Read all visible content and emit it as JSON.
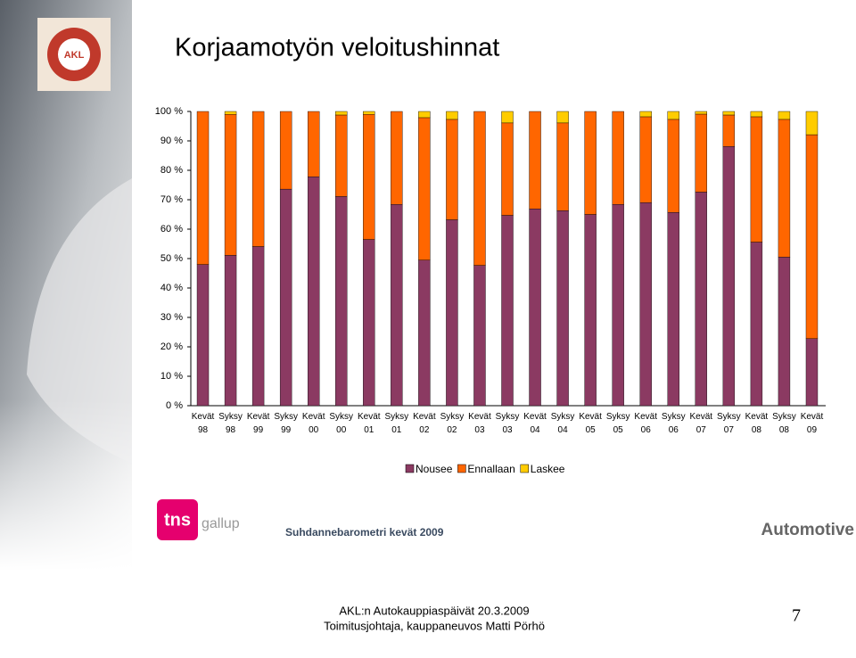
{
  "slide": {
    "logo": "AKL",
    "brand_left": "tns",
    "brand_right": "gallup",
    "survey": "Suhdannebarometri kevät 2009",
    "segment": "Automotive",
    "event": "AKL:n Autokauppiaspäivät 20.3.2009",
    "presenter": "Toimitusjohtaja, kauppaneuvos Matti Pörhö",
    "page": "7"
  },
  "chart_data": {
    "type": "stacked-bar",
    "title": "Korjaamotyön veloitushinnat",
    "categories": [
      "Kevät 98",
      "Syksy 98",
      "Kevät 99",
      "Syksy 99",
      "Kevät 00",
      "Syksy 00",
      "Kevät 01",
      "Syksy 01",
      "Kevät 02",
      "Syksy 02",
      "Kevät 03",
      "Syksy 03",
      "Kevät 04",
      "Syksy 04",
      "Kevät 05",
      "Syksy 05",
      "Kevät 06",
      "Syksy 06",
      "Kevät 07",
      "Syksy 07",
      "Kevät 08",
      "Syksy 08",
      "Kevät 09"
    ],
    "series": [
      {
        "name": "Nousee",
        "color": "#8b3a62",
        "values": [
          48.0,
          51.1,
          54.1,
          73.6,
          77.8,
          71.1,
          56.5,
          68.4,
          49.5,
          63.2,
          47.7,
          64.7,
          66.9,
          66.3,
          65.0,
          68.4,
          69.0,
          65.7,
          72.6,
          88.1,
          55.6,
          50.5,
          22.8
        ]
      },
      {
        "name": "Ennallaan",
        "color": "#ff6600",
        "values": [
          52.0,
          47.9,
          45.9,
          26.4,
          22.2,
          27.7,
          42.5,
          31.6,
          48.4,
          34.1,
          52.3,
          31.4,
          33.1,
          29.8,
          35.0,
          31.6,
          29.2,
          31.6,
          26.5,
          10.7,
          42.6,
          46.8,
          69.3
        ]
      },
      {
        "name": "Laskee",
        "color": "#ffcc00",
        "values": [
          0,
          1.0,
          0,
          0,
          0,
          1.2,
          1.0,
          0,
          2.1,
          2.7,
          0,
          3.9,
          0,
          3.9,
          0,
          0,
          1.8,
          2.7,
          0.9,
          1.2,
          1.8,
          2.7,
          7.9
        ]
      }
    ],
    "ylim": [
      0,
      100
    ],
    "yticks": [
      {
        "value": 0,
        "label": "0 %"
      },
      {
        "value": 10,
        "label": "10 %"
      },
      {
        "value": 20,
        "label": "20 %"
      },
      {
        "value": 30,
        "label": "30 %"
      },
      {
        "value": 40,
        "label": "40 %"
      },
      {
        "value": 50,
        "label": "50 %"
      },
      {
        "value": 60,
        "label": "60 %"
      },
      {
        "value": 70,
        "label": "70 %"
      },
      {
        "value": 80,
        "label": "80 %"
      },
      {
        "value": 90,
        "label": "90 %"
      },
      {
        "value": 100,
        "label": "100 %"
      }
    ],
    "legend": "bottom"
  }
}
